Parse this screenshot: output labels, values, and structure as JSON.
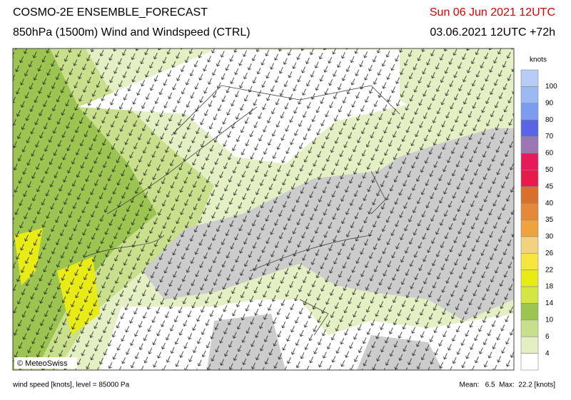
{
  "header": {
    "title": "COSMO-2E ENSEMBLE_FORECAST",
    "subtitle": "850hPa (1500m) Wind and Windspeed (CTRL)",
    "valid_time": "Sun 06 Jun 2021 12UTC",
    "run_time": "03.06.2021 12UTC +72h"
  },
  "map": {
    "credit": "© MeteoSwiss"
  },
  "colorbar": {
    "unit": "knots",
    "colors": [
      "#b8cdf5",
      "#9bb9f5",
      "#7c9cf0",
      "#5a64e6",
      "#9b78b4",
      "#e6195a",
      "#e8194b",
      "#d8702c",
      "#e6883a",
      "#f0a23c",
      "#f2d27e",
      "#f7e640",
      "#e8eb14",
      "#d4e646",
      "#9cc450",
      "#c8e08c",
      "#e4f0c4",
      "#ffffff"
    ],
    "labels": [
      "100",
      "90",
      "80",
      "70",
      "60",
      "50",
      "45",
      "40",
      "35",
      "30",
      "26",
      "22",
      "18",
      "14",
      "10",
      "6",
      "4"
    ]
  },
  "footer": {
    "description": "wind speed [knots], level = 85000 Pa",
    "stats": "Mean:   6.5  Max:  22.2 [knots]"
  }
}
